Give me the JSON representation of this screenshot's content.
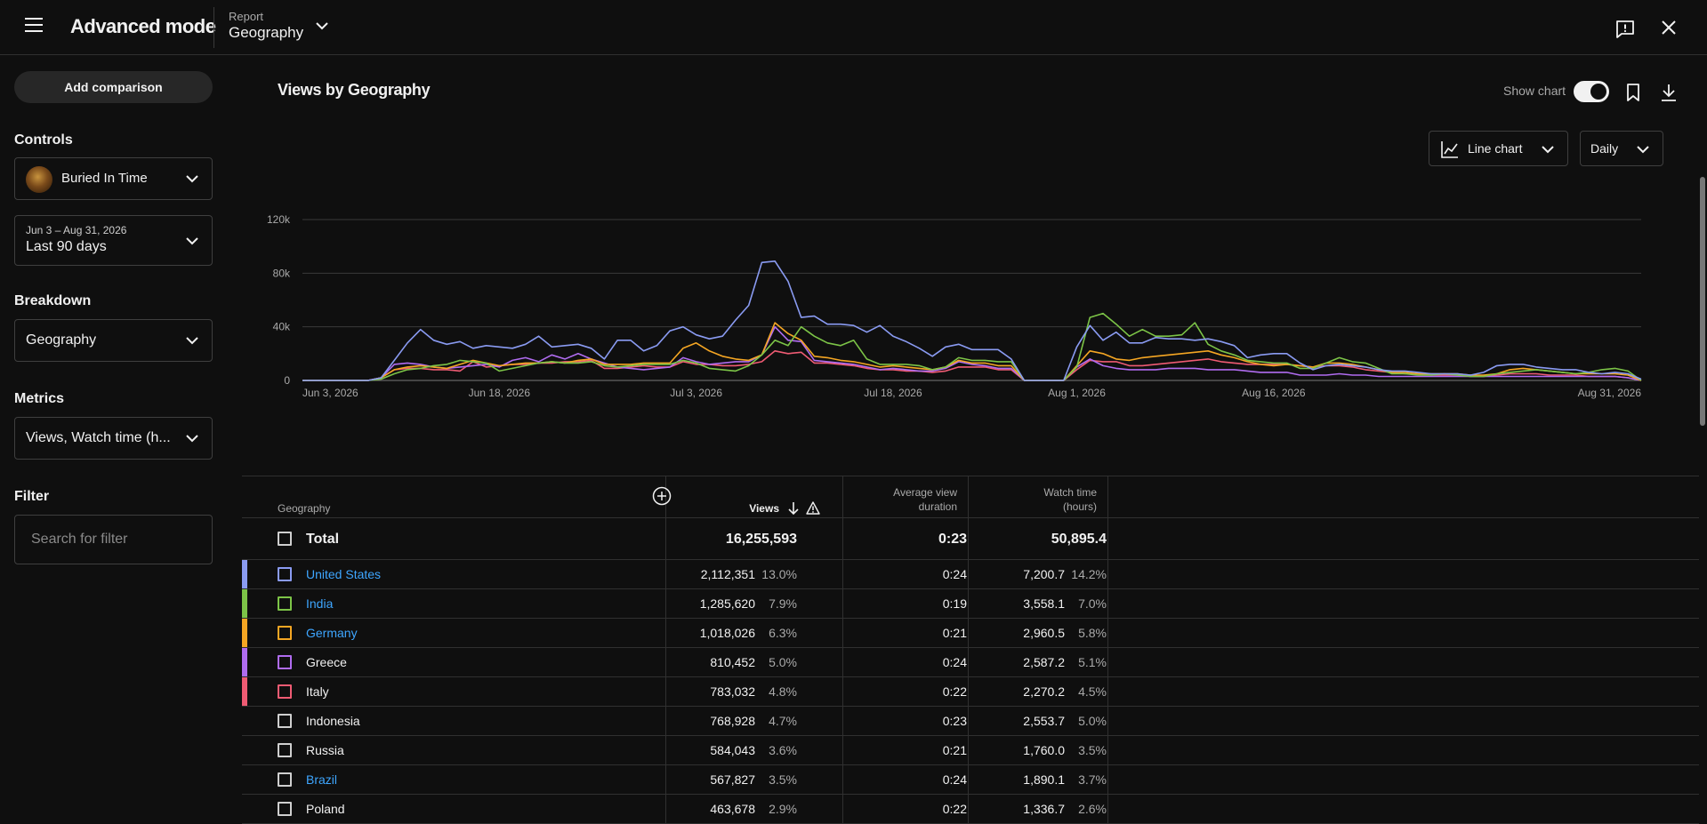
{
  "header": {
    "app_title": "Advanced mode",
    "report_label": "Report",
    "report_value": "Geography"
  },
  "sidebar": {
    "add_comparison": "Add comparison",
    "controls_label": "Controls",
    "content_select": "Buried In Time",
    "date_range_sub": "Jun 3 – Aug 31, 2026",
    "date_range_main": "Last 90 days",
    "breakdown_label": "Breakdown",
    "breakdown_value": "Geography",
    "metrics_label": "Metrics",
    "metrics_value": "Views, Watch time (h...",
    "filter_label": "Filter",
    "filter_placeholder": "Search for filter"
  },
  "main": {
    "chart_title": "Views by Geography",
    "show_chart_label": "Show chart",
    "chart_type_label": "Line chart",
    "interval_label": "Daily"
  },
  "chart_data": {
    "type": "line",
    "title": "Views by Geography",
    "xlabel": "",
    "ylabel": "",
    "x_ticks": [
      "Jun 3, 2026",
      "Jun 18, 2026",
      "Jul 3, 2026",
      "Jul 18, 2026",
      "Aug 1, 2026",
      "Aug 16, 2026",
      "Aug 31, 2026"
    ],
    "y_ticks": [
      "0",
      "40k",
      "80k",
      "120k"
    ],
    "ylim": [
      0,
      120000
    ],
    "x_start": "Jun 3, 2026",
    "x_end": "Aug 31, 2026",
    "grid": true,
    "legend": "none",
    "series": [
      {
        "name": "United States",
        "color": "#8a9bf2",
        "values": [
          0,
          0,
          0,
          0,
          0,
          0,
          2,
          15,
          28,
          38,
          30,
          27,
          29,
          24,
          26,
          25,
          24,
          27,
          33,
          25,
          26,
          27,
          24,
          16,
          30,
          30,
          22,
          26,
          37,
          40,
          34,
          31,
          33,
          45,
          56,
          88,
          89,
          74,
          47,
          48,
          42,
          42,
          41,
          36,
          41,
          33,
          29,
          24,
          18,
          25,
          27,
          23,
          23,
          23,
          16,
          0,
          0,
          0,
          0,
          25,
          41,
          30,
          36,
          28,
          28,
          32,
          31,
          31,
          30,
          31,
          29,
          26,
          17,
          19,
          20,
          20,
          13,
          8,
          11,
          12,
          11,
          10,
          8,
          7,
          7,
          6,
          5,
          5,
          5,
          4,
          6,
          11,
          12,
          12,
          10,
          9,
          8,
          8,
          6,
          5,
          6,
          5,
          1
        ]
      },
      {
        "name": "India",
        "color": "#7cc447",
        "values": [
          0,
          0,
          0,
          0,
          0,
          0,
          1,
          5,
          8,
          9,
          11,
          12,
          15,
          14,
          13,
          7,
          9,
          11,
          13,
          14,
          13,
          13,
          14,
          11,
          10,
          11,
          12,
          12,
          12,
          15,
          13,
          9,
          8,
          7,
          11,
          19,
          30,
          26,
          40,
          33,
          28,
          26,
          30,
          16,
          12,
          12,
          12,
          11,
          8,
          10,
          17,
          15,
          15,
          14,
          14,
          0,
          0,
          0,
          0,
          10,
          47,
          50,
          42,
          33,
          38,
          33,
          33,
          34,
          43,
          27,
          22,
          19,
          15,
          14,
          13,
          13,
          9,
          9,
          13,
          17,
          14,
          13,
          9,
          5,
          5,
          4,
          4,
          5,
          4,
          3,
          3,
          5,
          6,
          7,
          8,
          7,
          6,
          5,
          6,
          8,
          9,
          7,
          0
        ]
      },
      {
        "name": "Germany",
        "color": "#f5a623",
        "values": [
          0,
          0,
          0,
          0,
          0,
          0,
          2,
          8,
          10,
          11,
          10,
          9,
          12,
          15,
          13,
          11,
          12,
          13,
          13,
          14,
          13,
          15,
          16,
          12,
          12,
          12,
          13,
          13,
          13,
          24,
          28,
          22,
          18,
          16,
          15,
          19,
          43,
          35,
          30,
          18,
          17,
          15,
          14,
          12,
          10,
          11,
          10,
          9,
          8,
          10,
          15,
          13,
          13,
          11,
          11,
          0,
          0,
          0,
          0,
          11,
          22,
          20,
          16,
          15,
          17,
          18,
          19,
          20,
          21,
          22,
          19,
          17,
          14,
          12,
          11,
          12,
          11,
          10,
          13,
          13,
          12,
          10,
          8,
          6,
          6,
          5,
          5,
          5,
          5,
          4,
          4,
          5,
          8,
          9,
          8,
          7,
          6,
          5,
          5,
          5,
          5,
          4,
          0
        ]
      },
      {
        "name": "Greece",
        "color": "#b06cf0",
        "values": [
          0,
          0,
          0,
          0,
          0,
          0,
          2,
          12,
          13,
          12,
          10,
          9,
          10,
          11,
          12,
          10,
          15,
          17,
          14,
          19,
          16,
          20,
          16,
          13,
          10,
          9,
          8,
          9,
          10,
          17,
          14,
          12,
          13,
          14,
          14,
          19,
          40,
          30,
          29,
          15,
          14,
          13,
          12,
          10,
          8,
          9,
          8,
          7,
          7,
          9,
          14,
          12,
          11,
          9,
          9,
          0,
          0,
          0,
          0,
          10,
          16,
          11,
          9,
          8,
          8,
          8,
          9,
          9,
          9,
          8,
          8,
          8,
          7,
          6,
          6,
          6,
          4,
          4,
          4,
          5,
          4,
          4,
          3,
          3,
          3,
          3,
          3,
          3,
          3,
          3,
          3,
          3,
          3,
          3,
          3,
          3,
          3,
          3,
          3,
          3,
          3,
          2,
          0
        ]
      },
      {
        "name": "Italy",
        "color": "#ef5b73",
        "values": [
          0,
          0,
          0,
          0,
          0,
          0,
          2,
          8,
          9,
          9,
          8,
          8,
          7,
          14,
          10,
          11,
          12,
          12,
          13,
          13,
          14,
          14,
          15,
          9,
          9,
          10,
          11,
          10,
          10,
          14,
          12,
          12,
          11,
          11,
          12,
          14,
          22,
          20,
          21,
          13,
          13,
          12,
          11,
          9,
          8,
          8,
          7,
          7,
          6,
          7,
          10,
          10,
          10,
          8,
          8,
          0,
          0,
          0,
          0,
          8,
          15,
          14,
          14,
          11,
          11,
          12,
          13,
          14,
          15,
          16,
          14,
          13,
          12,
          12,
          12,
          12,
          11,
          10,
          11,
          11,
          10,
          8,
          7,
          6,
          5,
          5,
          4,
          4,
          4,
          3,
          3,
          4,
          5,
          5,
          5,
          4,
          4,
          4,
          3,
          3,
          3,
          2,
          0
        ]
      }
    ]
  },
  "table": {
    "col_geography": "Geography",
    "col_views": "Views",
    "col_avd_line1": "Average view",
    "col_avd_line2": "duration",
    "col_wt_line1": "Watch time",
    "col_wt_line2": "(hours)",
    "total": {
      "label": "Total",
      "views": "16,255,593",
      "avd": "0:23",
      "watch": "50,895.4"
    },
    "rows": [
      {
        "name": "United States",
        "link": true,
        "color": "#8a9bf2",
        "views": "2,112,351",
        "views_pct": "13.0%",
        "avd": "0:24",
        "watch": "7,200.7",
        "watch_pct": "14.2%"
      },
      {
        "name": "India",
        "link": true,
        "color": "#7cc447",
        "views": "1,285,620",
        "views_pct": "7.9%",
        "avd": "0:19",
        "watch": "3,558.1",
        "watch_pct": "7.0%"
      },
      {
        "name": "Germany",
        "link": true,
        "color": "#f5a623",
        "views": "1,018,026",
        "views_pct": "6.3%",
        "avd": "0:21",
        "watch": "2,960.5",
        "watch_pct": "5.8%"
      },
      {
        "name": "Greece",
        "link": false,
        "color": "#b06cf0",
        "views": "810,452",
        "views_pct": "5.0%",
        "avd": "0:24",
        "watch": "2,587.2",
        "watch_pct": "5.1%"
      },
      {
        "name": "Italy",
        "link": false,
        "color": "#ef5b73",
        "views": "783,032",
        "views_pct": "4.8%",
        "avd": "0:22",
        "watch": "2,270.2",
        "watch_pct": "4.5%"
      },
      {
        "name": "Indonesia",
        "link": false,
        "color": "",
        "views": "768,928",
        "views_pct": "4.7%",
        "avd": "0:23",
        "watch": "2,553.7",
        "watch_pct": "5.0%"
      },
      {
        "name": "Russia",
        "link": false,
        "color": "",
        "views": "584,043",
        "views_pct": "3.6%",
        "avd": "0:21",
        "watch": "1,760.0",
        "watch_pct": "3.5%"
      },
      {
        "name": "Brazil",
        "link": true,
        "color": "",
        "views": "567,827",
        "views_pct": "3.5%",
        "avd": "0:24",
        "watch": "1,890.1",
        "watch_pct": "3.7%"
      },
      {
        "name": "Poland",
        "link": false,
        "color": "",
        "views": "463,678",
        "views_pct": "2.9%",
        "avd": "0:22",
        "watch": "1,336.7",
        "watch_pct": "2.6%"
      }
    ]
  }
}
